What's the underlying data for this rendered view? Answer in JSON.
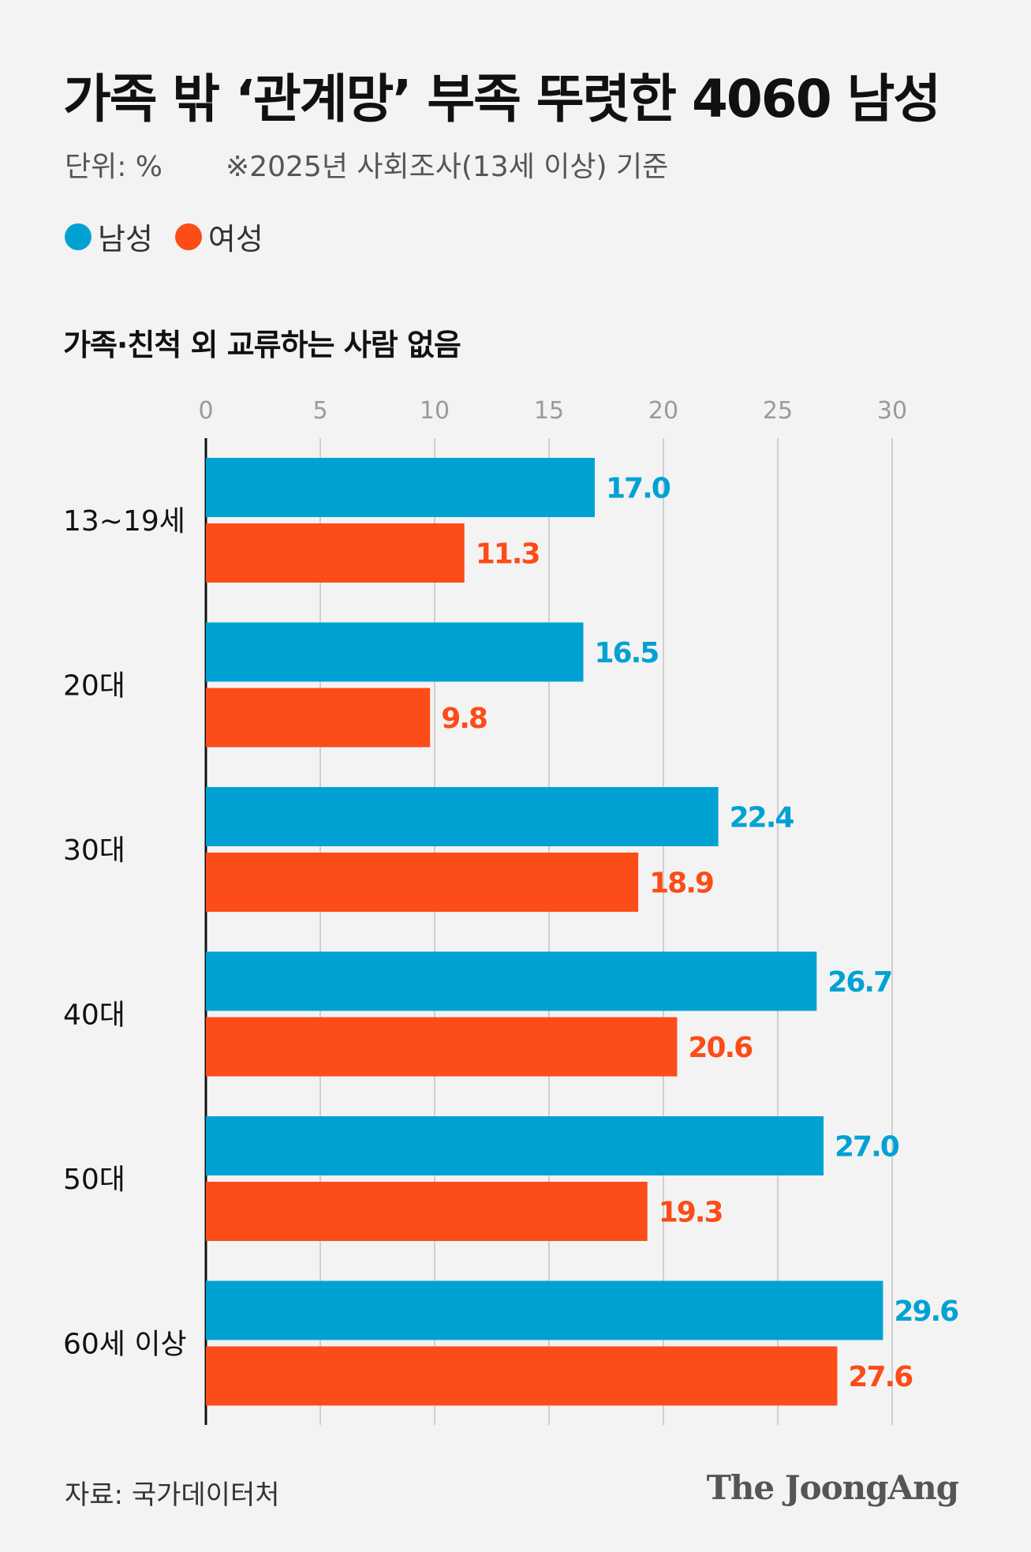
{
  "header": {
    "title": "가족 밖 ‘관계망’ 부족 뚜렷한 4060 남성",
    "unit": "단위: %",
    "note": "※2025년 사회조사(13세 이상) 기준"
  },
  "footer": {
    "source": "자료: 국가데이터처",
    "brand": "The JoongAng"
  },
  "chart_data": {
    "type": "bar",
    "orientation": "horizontal",
    "title": "가족·친척 외 교류하는 사람 없음",
    "categories": [
      "13~19세",
      "20대",
      "30대",
      "40대",
      "50대",
      "60세 이상"
    ],
    "series": [
      {
        "name": "남성",
        "color": "#00a2d3",
        "values": [
          17.0,
          16.5,
          22.4,
          26.7,
          27.0,
          29.6
        ],
        "labels": [
          "17.0",
          "16.5",
          "22.4",
          "26.7",
          "27.0",
          "29.6"
        ]
      },
      {
        "name": "여성",
        "color": "#fc4c18",
        "values": [
          11.3,
          9.8,
          18.9,
          20.6,
          19.3,
          27.6
        ],
        "labels": [
          "11.3",
          "9.8",
          "18.9",
          "20.6",
          "19.3",
          "27.6"
        ]
      }
    ],
    "xlim": [
      0,
      30
    ],
    "ticks": [
      0,
      5,
      10,
      15,
      20,
      25,
      30
    ],
    "grid": true,
    "legend": "top-left"
  }
}
